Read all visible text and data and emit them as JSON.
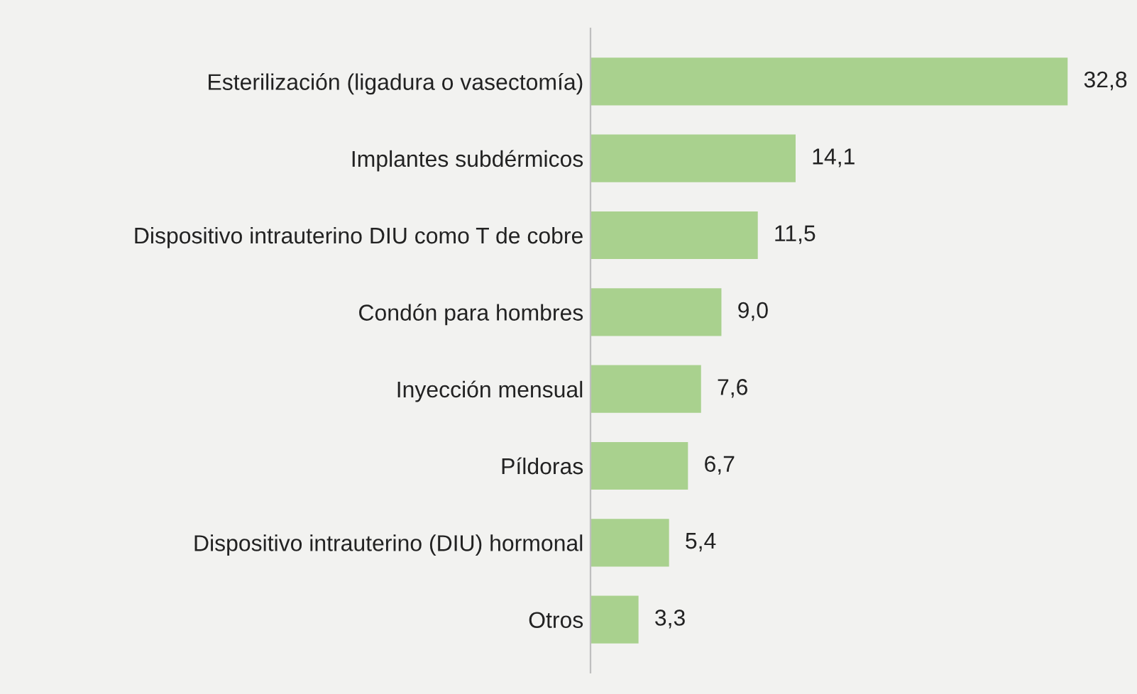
{
  "chart_data": {
    "type": "bar",
    "orientation": "horizontal",
    "categories": [
      "Esterilización (ligadura o vasectomía)",
      "Implantes subdérmicos",
      "Dispositivo intrauterino DIU como T de cobre",
      "Condón para hombres",
      "Inyección mensual",
      "Píldoras",
      "Dispositivo intrauterino (DIU) hormonal",
      "Otros"
    ],
    "values": [
      32.8,
      14.1,
      11.5,
      9.0,
      7.6,
      6.7,
      5.4,
      3.3
    ],
    "value_labels": [
      "32,8",
      "14,1",
      "11,5",
      "9,0",
      "7,6",
      "6,7",
      "5,4",
      "3,3"
    ],
    "color": "#a9d18e",
    "tick_labels": "y",
    "grid": false,
    "legend": false
  }
}
